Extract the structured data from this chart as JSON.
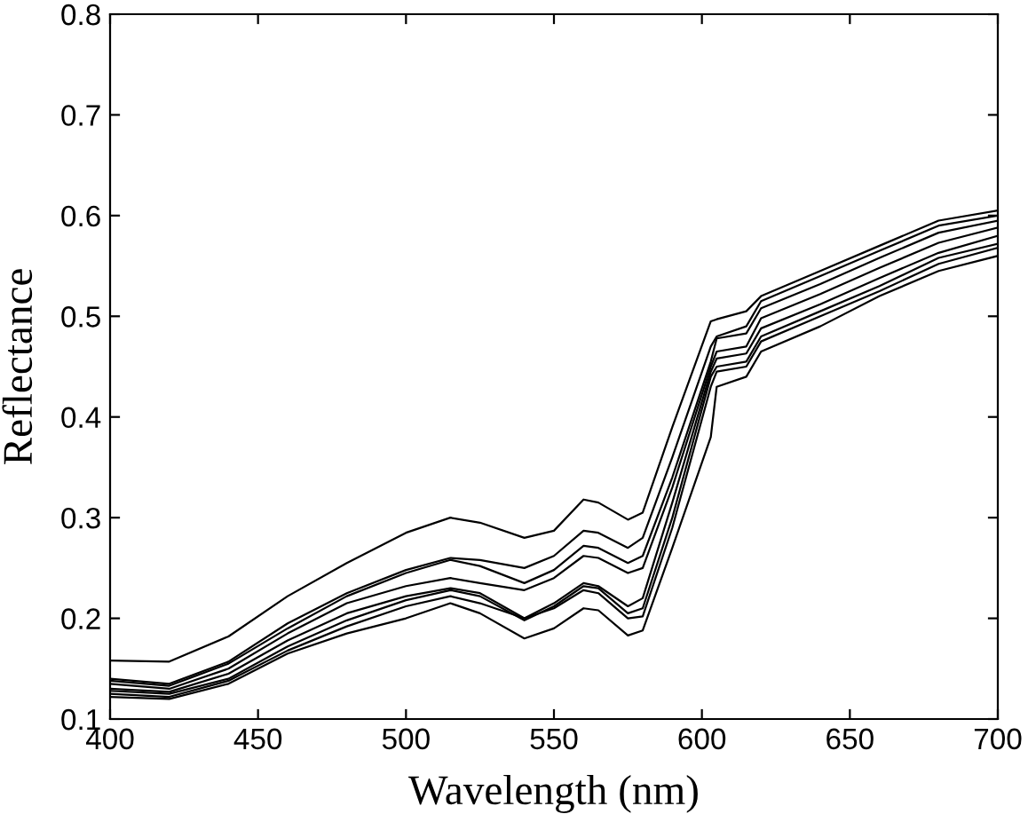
{
  "chart_data": {
    "type": "line",
    "xlabel": "Wavelength (nm)",
    "ylabel": "Reflectance",
    "x": [
      400,
      420,
      440,
      460,
      480,
      500,
      515,
      525,
      540,
      550,
      560,
      565,
      575,
      580,
      590,
      603,
      605,
      615,
      620,
      640,
      660,
      680,
      700
    ],
    "xlim": [
      400,
      700
    ],
    "xticks": [
      400,
      450,
      500,
      550,
      600,
      650,
      700
    ],
    "ylim": [
      0.1,
      0.8
    ],
    "yticks": [
      0.1,
      0.2,
      0.3,
      0.4,
      0.5,
      0.6,
      0.7,
      0.8
    ],
    "grid": false,
    "legend": false,
    "marker": "none",
    "line_style": "solid",
    "series": [
      {
        "color": "#000000",
        "values": [
          0.158,
          0.157,
          0.182,
          0.222,
          0.255,
          0.285,
          0.3,
          0.295,
          0.28,
          0.287,
          0.318,
          0.315,
          0.298,
          0.305,
          0.39,
          0.495,
          0.497,
          0.505,
          0.52,
          0.545,
          0.57,
          0.595,
          0.605
        ]
      },
      {
        "color": "#000000",
        "values": [
          0.14,
          0.135,
          0.157,
          0.195,
          0.225,
          0.248,
          0.26,
          0.258,
          0.25,
          0.262,
          0.287,
          0.285,
          0.27,
          0.28,
          0.36,
          0.47,
          0.48,
          0.49,
          0.515,
          0.54,
          0.565,
          0.59,
          0.6
        ]
      },
      {
        "color": "#000000",
        "values": [
          0.138,
          0.133,
          0.155,
          0.19,
          0.222,
          0.245,
          0.258,
          0.252,
          0.235,
          0.248,
          0.272,
          0.27,
          0.255,
          0.262,
          0.34,
          0.455,
          0.478,
          0.483,
          0.508,
          0.532,
          0.558,
          0.583,
          0.595
        ]
      },
      {
        "color": "#000000",
        "values": [
          0.135,
          0.13,
          0.15,
          0.185,
          0.215,
          0.232,
          0.24,
          0.235,
          0.228,
          0.24,
          0.262,
          0.26,
          0.245,
          0.25,
          0.33,
          0.45,
          0.465,
          0.47,
          0.498,
          0.522,
          0.548,
          0.573,
          0.588
        ]
      },
      {
        "color": "#000000",
        "values": [
          0.13,
          0.127,
          0.145,
          0.178,
          0.205,
          0.222,
          0.23,
          0.225,
          0.2,
          0.215,
          0.235,
          0.232,
          0.212,
          0.22,
          0.315,
          0.445,
          0.458,
          0.463,
          0.488,
          0.512,
          0.538,
          0.563,
          0.58
        ]
      },
      {
        "color": "#000000",
        "values": [
          0.128,
          0.125,
          0.14,
          0.172,
          0.198,
          0.218,
          0.228,
          0.222,
          0.198,
          0.212,
          0.232,
          0.23,
          0.205,
          0.21,
          0.3,
          0.44,
          0.45,
          0.455,
          0.48,
          0.505,
          0.53,
          0.558,
          0.572
        ]
      },
      {
        "color": "#000000",
        "values": [
          0.125,
          0.122,
          0.138,
          0.168,
          0.192,
          0.212,
          0.222,
          0.215,
          0.2,
          0.21,
          0.228,
          0.225,
          0.2,
          0.202,
          0.29,
          0.43,
          0.445,
          0.45,
          0.475,
          0.5,
          0.525,
          0.552,
          0.568
        ]
      },
      {
        "color": "#000000",
        "values": [
          0.122,
          0.12,
          0.135,
          0.165,
          0.185,
          0.2,
          0.215,
          0.205,
          0.18,
          0.19,
          0.21,
          0.208,
          0.183,
          0.188,
          0.27,
          0.38,
          0.43,
          0.44,
          0.465,
          0.49,
          0.52,
          0.545,
          0.56
        ]
      }
    ]
  }
}
